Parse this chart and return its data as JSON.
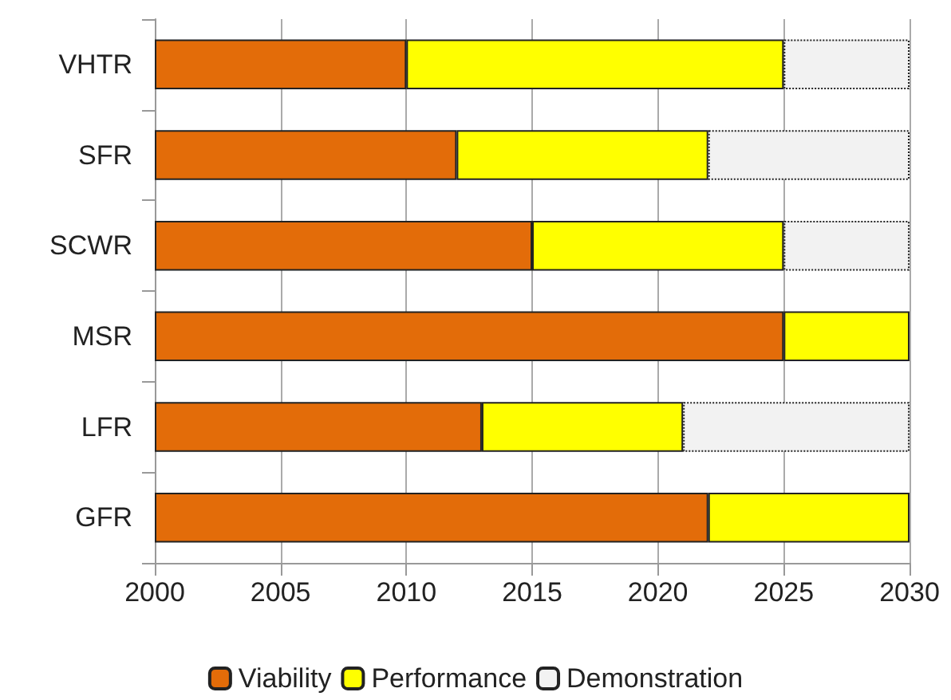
{
  "chart_data": {
    "type": "bar",
    "orientation": "horizontal",
    "categories": [
      "VHTR",
      "SFR",
      "SCWR",
      "MSR",
      "LFR",
      "GFR"
    ],
    "series": [
      {
        "name": "Viability",
        "color": "#e36c09",
        "base": [
          2000,
          2000,
          2000,
          2000,
          2000,
          2000
        ],
        "values": [
          10,
          12,
          15,
          25,
          13,
          22
        ]
      },
      {
        "name": "Performance",
        "color": "#ffff00",
        "base": [
          2010,
          2012,
          2015,
          2025,
          2013,
          2022
        ],
        "values": [
          15,
          10,
          10,
          5,
          8,
          8
        ]
      },
      {
        "name": "Demonstration",
        "color": "#f2f2f2",
        "line_style": "dotted",
        "base": [
          2025,
          2022,
          2025,
          null,
          2021,
          null
        ],
        "values": [
          5,
          8,
          5,
          null,
          9,
          null
        ]
      }
    ],
    "xlim": [
      2000,
      2030
    ],
    "xticks": [
      2000,
      2005,
      2010,
      2015,
      2020,
      2025,
      2030
    ],
    "grid": "x",
    "legend": "bottom"
  }
}
